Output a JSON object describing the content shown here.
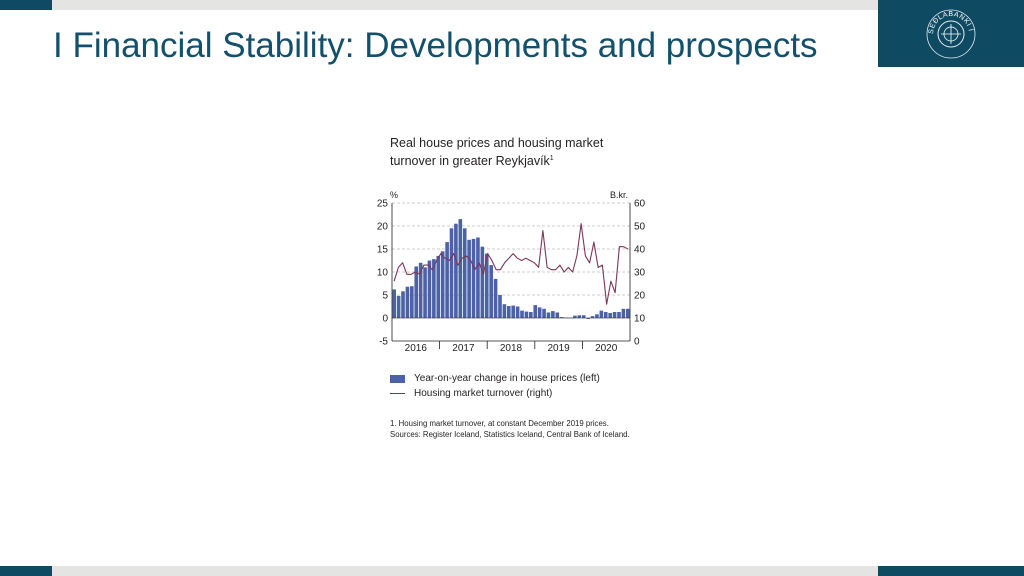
{
  "slide": {
    "title": "I Financial Stability: Developments and prospects"
  },
  "logo": {
    "icon": "central-bank-seal-icon",
    "text": "SEÐLABANKI ÍSLANDS"
  },
  "colors": {
    "brand_dark": "#0f4a63",
    "bar": "#4b62a6",
    "line": "#7d3557"
  },
  "chart_data": {
    "type": "bar+line",
    "title_line1": "Real house prices and housing market",
    "title_line2": "turnover in greater Reykjavík",
    "title_sup": "1",
    "yleft_unit": "%",
    "yright_unit": "B.kr.",
    "yleft_ticks": [
      25,
      20,
      15,
      10,
      5,
      0,
      -5
    ],
    "yright_ticks": [
      60,
      50,
      40,
      30,
      20,
      10,
      0
    ],
    "ylim_left": [
      -5,
      25
    ],
    "ylim_right": [
      0,
      60
    ],
    "x_year_labels": [
      "2016",
      "2017",
      "2018",
      "2019",
      "2020"
    ],
    "grid": "dashed horizontal",
    "series": [
      {
        "name": "Year-on-year change in house prices (left)",
        "axis": "left",
        "kind": "bar",
        "values": [
          6.2,
          4.8,
          5.8,
          6.8,
          6.9,
          11.2,
          12.0,
          11.0,
          12.5,
          12.8,
          13.5,
          14.5,
          16.5,
          19.5,
          20.5,
          21.5,
          19.5,
          17.0,
          17.2,
          17.5,
          15.5,
          14.0,
          11.5,
          8.5,
          5.0,
          3.0,
          2.6,
          2.7,
          2.5,
          1.6,
          1.4,
          1.3,
          2.8,
          2.3,
          2.0,
          1.2,
          1.5,
          1.2,
          0.2,
          0.1,
          0.1,
          0.5,
          0.6,
          0.6,
          -0.2,
          0.4,
          0.8,
          1.6,
          1.3,
          1.1,
          1.3,
          1.3,
          2.0,
          2.0
        ]
      },
      {
        "name": "Housing market turnover (right)",
        "axis": "right",
        "kind": "line",
        "values": [
          26,
          32,
          34,
          29,
          29,
          30,
          29,
          33,
          33,
          31,
          35,
          38,
          36,
          35,
          38,
          33,
          36,
          37,
          35,
          31,
          34,
          29,
          38,
          35,
          31,
          31,
          34,
          36,
          38,
          36,
          35,
          36,
          35,
          34,
          32,
          48,
          32,
          31,
          31,
          33,
          30,
          32,
          30,
          37,
          51,
          37,
          34,
          43,
          32,
          33,
          16,
          26,
          21,
          41,
          41,
          40
        ]
      }
    ]
  },
  "legend": {
    "bar_label": "Year-on-year change in house prices (left)",
    "line_label": "Housing market turnover (right)"
  },
  "footnotes": {
    "note1": "1. Housing market turnover, at constant December 2019 prices.",
    "sources": "Sources: Register Iceland, Statistics Iceland, Central Bank of Iceland."
  }
}
